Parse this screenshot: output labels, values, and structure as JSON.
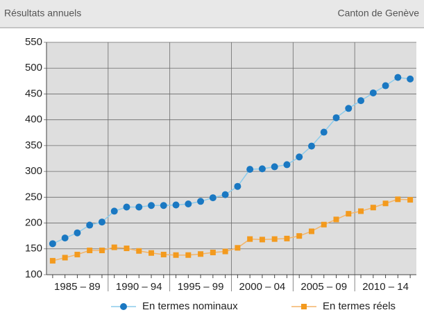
{
  "header": {
    "left": "Résultats annuels",
    "right": "Canton de Genève"
  },
  "chart_data": {
    "type": "line",
    "categories": [
      null,
      null,
      null,
      null,
      null,
      null,
      null,
      null,
      null,
      null,
      null,
      null,
      null,
      null,
      null,
      null,
      null,
      null,
      null,
      null,
      null,
      null,
      null,
      null,
      null,
      null,
      null,
      null,
      null,
      null
    ],
    "category_groups": [
      "1985 – 89",
      "1990 – 94",
      "1995 – 99",
      "2000 – 04",
      "2005 – 09",
      "2010 – 14"
    ],
    "series": [
      {
        "name": "En termes nominaux",
        "color": "#1a78c2",
        "line_color": "#8ccbeb",
        "marker": "circle",
        "values": [
          160,
          171,
          181,
          196,
          202,
          223,
          231,
          231,
          234,
          234,
          235,
          237,
          242,
          249,
          255,
          271,
          304,
          305,
          309,
          313,
          328,
          349,
          376,
          404,
          422,
          437,
          452,
          466,
          482,
          479
        ]
      },
      {
        "name": "En termes réels",
        "color": "#f39a1e",
        "line_color": "#f3b468",
        "marker": "square",
        "values": [
          127,
          133,
          139,
          147,
          147,
          153,
          151,
          146,
          142,
          139,
          138,
          138,
          140,
          143,
          145,
          152,
          169,
          168,
          169,
          170,
          175,
          184,
          197,
          207,
          218,
          223,
          230,
          238,
          246,
          245
        ]
      }
    ],
    "ylim": [
      100,
      550
    ],
    "yticks": [
      100,
      150,
      200,
      250,
      300,
      350,
      400,
      450,
      500,
      550
    ],
    "grid": true
  }
}
